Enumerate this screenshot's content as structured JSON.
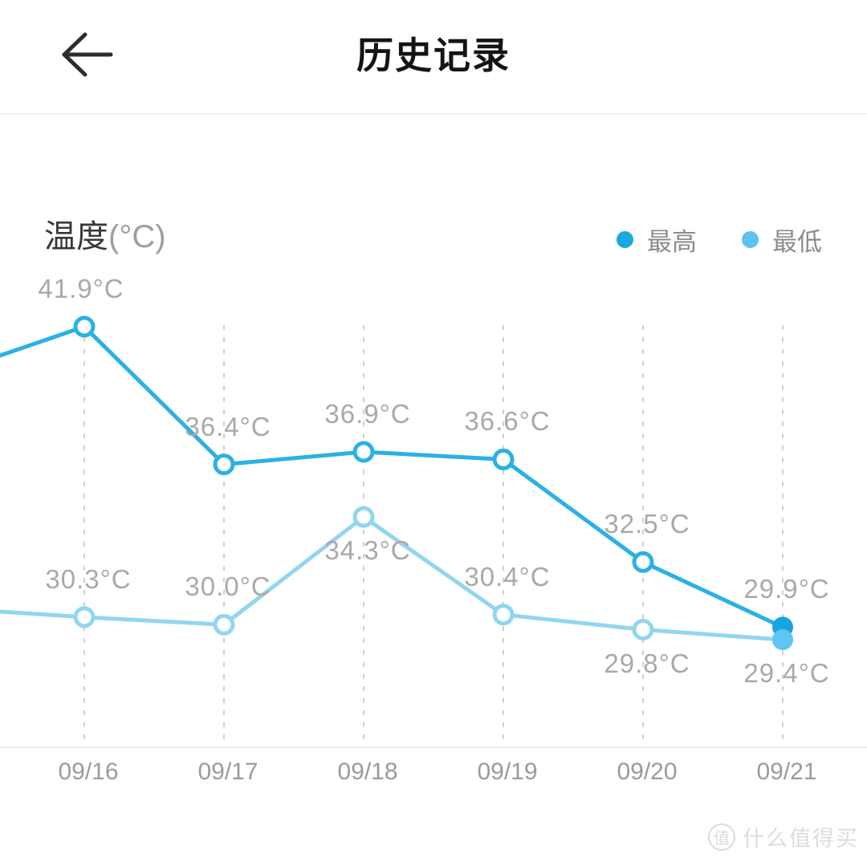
{
  "header": {
    "title": "历史记录"
  },
  "chart": {
    "title_main": "温度",
    "title_unit": "(°C)",
    "legend": [
      {
        "label": "最高",
        "color": "#1ca7e1"
      },
      {
        "label": "最低",
        "color": "#5bc3ee"
      }
    ]
  },
  "chart_data": {
    "type": "line",
    "title": "温度(°C)",
    "categories": [
      "09/16",
      "09/17",
      "09/18",
      "09/19",
      "09/20",
      "09/21"
    ],
    "series": [
      {
        "name": "最高",
        "color": "#2bb1e4",
        "point_fill_color": "#17a5e1",
        "values": [
          41.9,
          36.4,
          36.9,
          36.6,
          32.5,
          29.9
        ],
        "labels": [
          "41.9°C",
          "36.4°C",
          "36.9°C",
          "36.6°C",
          "32.5°C",
          "29.9°C"
        ],
        "label_side": [
          "above",
          "above",
          "above",
          "above",
          "above",
          "above"
        ]
      },
      {
        "name": "最低",
        "color": "#92d5f0",
        "point_fill_color": "#5ec6f0",
        "values": [
          30.3,
          30.0,
          34.3,
          30.4,
          29.8,
          29.4
        ],
        "labels": [
          "30.3°C",
          "30.0°C",
          "34.3°C",
          "30.4°C",
          "29.8°C",
          "29.4°C"
        ],
        "label_side": [
          "above",
          "above",
          "below",
          "above",
          "below",
          "below"
        ]
      }
    ],
    "xlabel": "",
    "ylabel": "温度(°C)",
    "grid": "vertical-dashed",
    "legend_position": "top-right",
    "marker_style": "hollow-circle, last point filled"
  },
  "watermark": {
    "icon_char": "值",
    "text": "什么值得买"
  }
}
